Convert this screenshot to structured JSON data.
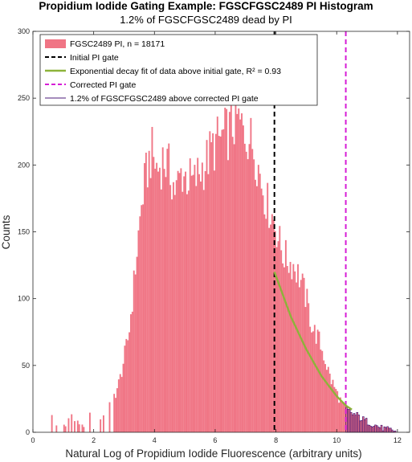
{
  "chart_data": {
    "type": "bar",
    "title": "Propidium Iodide Gating Example: FGSCFGSC2489 PI Histogram",
    "subtitle": "1.2% of FGSCFGSC2489 dead by PI",
    "xlabel": "Natural Log of Propidium Iodide Fluorescence (arbitrary units)",
    "ylabel": "Counts",
    "xlim": [
      0,
      12.4
    ],
    "ylim": [
      0,
      300
    ],
    "xticks": [
      0,
      2,
      4,
      6,
      8,
      10,
      12
    ],
    "yticks": [
      0,
      50,
      100,
      150,
      200,
      250,
      300
    ],
    "grid": false,
    "legend_position": "top-left",
    "colors": {
      "histogram": "#f07585",
      "initial_gate": "#000000",
      "fit": "#8db33a",
      "corrected_gate": "#d61ed6",
      "above_gate_outline": "#4b1a78"
    },
    "legend": [
      "FGSC2489 PI, n = 18171",
      "Initial PI gate",
      "Exponential decay fit of data above initial gate, R² = 0.93",
      "Corrected PI gate",
      "1.2% of FGSCFGSC2489 above corrected PI gate"
    ],
    "initial_gate_x": 7.95,
    "corrected_gate_x": 10.3,
    "fit_points": [
      [
        7.95,
        120
      ],
      [
        8.5,
        86
      ],
      [
        9.0,
        62
      ],
      [
        9.5,
        42
      ],
      [
        10.0,
        27
      ],
      [
        10.3,
        20
      ],
      [
        10.5,
        17
      ]
    ],
    "histogram_points": [
      [
        0.55,
        14
      ],
      [
        0.9,
        2
      ],
      [
        1.25,
        12
      ],
      [
        1.6,
        3
      ],
      [
        1.85,
        14
      ],
      [
        2.1,
        4
      ],
      [
        2.3,
        14
      ],
      [
        2.5,
        24
      ],
      [
        2.7,
        28
      ],
      [
        2.85,
        38
      ],
      [
        3.0,
        55
      ],
      [
        3.15,
        72
      ],
      [
        3.3,
        105
      ],
      [
        3.45,
        142
      ],
      [
        3.6,
        175
      ],
      [
        3.75,
        195
      ],
      [
        3.9,
        210
      ],
      [
        4.1,
        196
      ],
      [
        4.3,
        205
      ],
      [
        4.5,
        196
      ],
      [
        4.7,
        180
      ],
      [
        4.9,
        195
      ],
      [
        5.1,
        190
      ],
      [
        5.3,
        186
      ],
      [
        5.5,
        196
      ],
      [
        5.7,
        202
      ],
      [
        5.9,
        212
      ],
      [
        6.1,
        218
      ],
      [
        6.3,
        222
      ],
      [
        6.5,
        226
      ],
      [
        6.7,
        235
      ],
      [
        6.9,
        226
      ],
      [
        7.1,
        222
      ],
      [
        7.3,
        212
      ],
      [
        7.5,
        190
      ],
      [
        7.7,
        172
      ],
      [
        7.95,
        158
      ],
      [
        8.2,
        135
      ],
      [
        8.4,
        128
      ],
      [
        8.6,
        125
      ],
      [
        8.8,
        115
      ],
      [
        9.0,
        100
      ],
      [
        9.2,
        78
      ],
      [
        9.4,
        70
      ],
      [
        9.6,
        56
      ],
      [
        9.8,
        40
      ],
      [
        10.0,
        30
      ],
      [
        10.2,
        20
      ],
      [
        10.35,
        16
      ],
      [
        10.5,
        14
      ],
      [
        10.7,
        12
      ],
      [
        10.9,
        9
      ],
      [
        11.1,
        7
      ],
      [
        11.3,
        5
      ],
      [
        11.5,
        3
      ],
      [
        11.7,
        2
      ],
      [
        11.9,
        1
      ]
    ]
  }
}
